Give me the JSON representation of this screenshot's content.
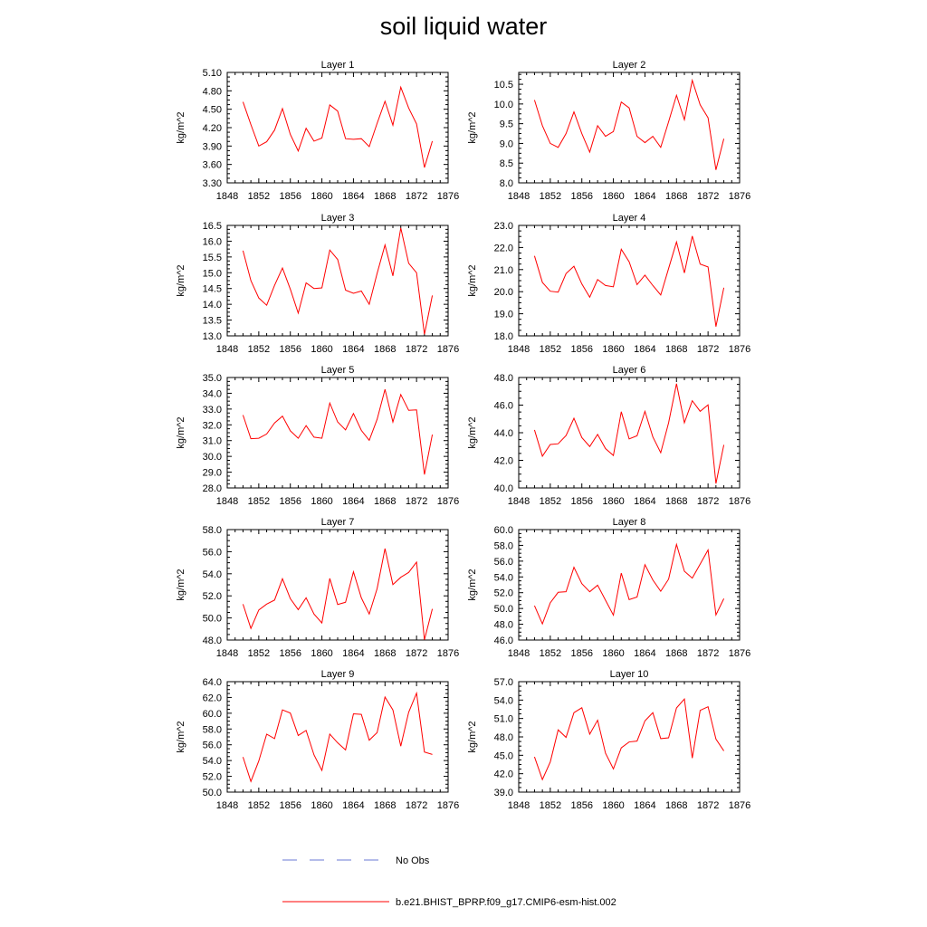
{
  "title": "soil liquid water",
  "legend": {
    "items": [
      {
        "label": "No Obs",
        "color": "#6a78d6",
        "dash": true
      },
      {
        "label": "b.e21.BHIST_BPRP.f09_g17.CMIP6-esm-hist.002",
        "color": "#ff0000",
        "dash": false
      }
    ]
  },
  "colors": {
    "series": "#ff0000",
    "obs": "#6a78d6"
  },
  "chart_data": [
    {
      "type": "line",
      "title": "Layer 1",
      "ylabel": "kg/m^2",
      "xlim": [
        1848,
        1876
      ],
      "xticks": [
        1848,
        1852,
        1856,
        1860,
        1864,
        1868,
        1872,
        1876
      ],
      "ylim": [
        3.3,
        5.1
      ],
      "yticks": [
        3.3,
        3.6,
        3.9,
        4.2,
        4.5,
        4.8,
        5.1
      ],
      "ydec": 2,
      "x": [
        1850,
        1851,
        1852,
        1853,
        1854,
        1855,
        1856,
        1857,
        1858,
        1859,
        1860,
        1861,
        1862,
        1863,
        1864,
        1865,
        1866,
        1867,
        1868,
        1869,
        1870,
        1871,
        1872,
        1873,
        1874
      ],
      "series": [
        {
          "name": "b.e21.BHIST_BPRP.f09_g17.CMIP6-esm-hist.002",
          "values": [
            4.62,
            4.25,
            3.9,
            3.97,
            4.16,
            4.51,
            4.09,
            3.82,
            4.19,
            3.98,
            4.03,
            4.57,
            4.47,
            4.02,
            4.01,
            4.02,
            3.89,
            4.27,
            4.63,
            4.24,
            4.86,
            4.52,
            4.26,
            3.55,
            3.98
          ]
        }
      ]
    },
    {
      "type": "line",
      "title": "Layer 2",
      "ylabel": "kg/m^2",
      "xlim": [
        1848,
        1876
      ],
      "xticks": [
        1848,
        1852,
        1856,
        1860,
        1864,
        1868,
        1872,
        1876
      ],
      "ylim": [
        8.0,
        10.8
      ],
      "yticks": [
        8.0,
        8.5,
        9.0,
        9.5,
        10.0,
        10.5
      ],
      "ydec": 1,
      "x": [
        1850,
        1851,
        1852,
        1853,
        1854,
        1855,
        1856,
        1857,
        1858,
        1859,
        1860,
        1861,
        1862,
        1863,
        1864,
        1865,
        1866,
        1867,
        1868,
        1869,
        1870,
        1871,
        1872,
        1873,
        1874
      ],
      "series": [
        {
          "name": "b.e21.BHIST_BPRP.f09_g17.CMIP6-esm-hist.002",
          "values": [
            10.1,
            9.45,
            9.0,
            8.9,
            9.25,
            9.8,
            9.25,
            8.78,
            9.45,
            9.18,
            9.3,
            10.05,
            9.9,
            9.18,
            9.02,
            9.18,
            8.9,
            9.55,
            10.22,
            9.6,
            10.6,
            9.98,
            9.65,
            8.33,
            9.12
          ]
        }
      ]
    },
    {
      "type": "line",
      "title": "Layer 3",
      "ylabel": "kg/m^2",
      "xlim": [
        1848,
        1876
      ],
      "xticks": [
        1848,
        1852,
        1856,
        1860,
        1864,
        1868,
        1872,
        1876
      ],
      "ylim": [
        13.0,
        16.5
      ],
      "yticks": [
        13.0,
        13.5,
        14.0,
        14.5,
        15.0,
        15.5,
        16.0,
        16.5
      ],
      "ydec": 1,
      "x": [
        1850,
        1851,
        1852,
        1853,
        1854,
        1855,
        1856,
        1857,
        1858,
        1859,
        1860,
        1861,
        1862,
        1863,
        1864,
        1865,
        1866,
        1867,
        1868,
        1869,
        1870,
        1871,
        1872,
        1873,
        1874
      ],
      "series": [
        {
          "name": "b.e21.BHIST_BPRP.f09_g17.CMIP6-esm-hist.002",
          "values": [
            15.7,
            14.75,
            14.2,
            13.97,
            14.6,
            15.15,
            14.48,
            13.72,
            14.68,
            14.5,
            14.52,
            15.72,
            15.42,
            14.45,
            14.35,
            14.42,
            14.0,
            14.98,
            15.88,
            14.9,
            16.42,
            15.3,
            15.0,
            13.05,
            14.28
          ]
        }
      ]
    },
    {
      "type": "line",
      "title": "Layer 4",
      "ylabel": "kg/m^2",
      "xlim": [
        1848,
        1876
      ],
      "xticks": [
        1848,
        1852,
        1856,
        1860,
        1864,
        1868,
        1872,
        1876
      ],
      "ylim": [
        18.0,
        23.0
      ],
      "yticks": [
        18.0,
        19.0,
        20.0,
        21.0,
        22.0,
        23.0
      ],
      "ydec": 1,
      "x": [
        1850,
        1851,
        1852,
        1853,
        1854,
        1855,
        1856,
        1857,
        1858,
        1859,
        1860,
        1861,
        1862,
        1863,
        1864,
        1865,
        1866,
        1867,
        1868,
        1869,
        1870,
        1871,
        1872,
        1873,
        1874
      ],
      "series": [
        {
          "name": "b.e21.BHIST_BPRP.f09_g17.CMIP6-esm-hist.002",
          "values": [
            21.62,
            20.42,
            20.02,
            19.98,
            20.82,
            21.15,
            20.35,
            19.75,
            20.55,
            20.28,
            20.22,
            21.92,
            21.35,
            20.32,
            20.75,
            20.28,
            19.85,
            21.05,
            22.25,
            20.85,
            22.52,
            21.25,
            21.12,
            18.42,
            20.18
          ]
        }
      ]
    },
    {
      "type": "line",
      "title": "Layer 5",
      "ylabel": "kg/m^2",
      "xlim": [
        1848,
        1876
      ],
      "xticks": [
        1848,
        1852,
        1856,
        1860,
        1864,
        1868,
        1872,
        1876
      ],
      "ylim": [
        28.0,
        35.0
      ],
      "yticks": [
        28.0,
        29.0,
        30.0,
        31.0,
        32.0,
        33.0,
        34.0,
        35.0
      ],
      "ydec": 1,
      "x": [
        1850,
        1851,
        1852,
        1853,
        1854,
        1855,
        1856,
        1857,
        1858,
        1859,
        1860,
        1861,
        1862,
        1863,
        1864,
        1865,
        1866,
        1867,
        1868,
        1869,
        1870,
        1871,
        1872,
        1873,
        1874
      ],
      "series": [
        {
          "name": "b.e21.BHIST_BPRP.f09_g17.CMIP6-esm-hist.002",
          "values": [
            32.62,
            31.12,
            31.15,
            31.42,
            32.12,
            32.55,
            31.62,
            31.15,
            31.95,
            31.22,
            31.15,
            33.38,
            32.18,
            31.68,
            32.72,
            31.65,
            31.02,
            32.35,
            34.25,
            32.18,
            33.92,
            32.92,
            32.95,
            28.85,
            31.38
          ]
        }
      ]
    },
    {
      "type": "line",
      "title": "Layer 6",
      "ylabel": "kg/m^2",
      "xlim": [
        1848,
        1876
      ],
      "xticks": [
        1848,
        1852,
        1856,
        1860,
        1864,
        1868,
        1872,
        1876
      ],
      "ylim": [
        40.0,
        48.0
      ],
      "yticks": [
        40.0,
        42.0,
        44.0,
        46.0,
        48.0
      ],
      "ydec": 1,
      "x": [
        1850,
        1851,
        1852,
        1853,
        1854,
        1855,
        1856,
        1857,
        1858,
        1859,
        1860,
        1861,
        1862,
        1863,
        1864,
        1865,
        1866,
        1867,
        1868,
        1869,
        1870,
        1871,
        1872,
        1873,
        1874
      ],
      "series": [
        {
          "name": "b.e21.BHIST_BPRP.f09_g17.CMIP6-esm-hist.002",
          "values": [
            44.2,
            42.3,
            43.15,
            43.2,
            43.8,
            45.05,
            43.65,
            43.0,
            43.88,
            42.85,
            42.35,
            45.52,
            43.55,
            43.78,
            45.55,
            43.7,
            42.55,
            44.72,
            47.55,
            44.72,
            46.32,
            45.55,
            46.02,
            40.32,
            43.12
          ]
        }
      ]
    },
    {
      "type": "line",
      "title": "Layer 7",
      "ylabel": "kg/m^2",
      "xlim": [
        1848,
        1876
      ],
      "xticks": [
        1848,
        1852,
        1856,
        1860,
        1864,
        1868,
        1872,
        1876
      ],
      "ylim": [
        48.0,
        58.0
      ],
      "yticks": [
        48.0,
        50.0,
        52.0,
        54.0,
        56.0,
        58.0
      ],
      "ydec": 1,
      "x": [
        1850,
        1851,
        1852,
        1853,
        1854,
        1855,
        1856,
        1857,
        1858,
        1859,
        1860,
        1861,
        1862,
        1863,
        1864,
        1865,
        1866,
        1867,
        1868,
        1869,
        1870,
        1871,
        1872,
        1873,
        1874
      ],
      "series": [
        {
          "name": "b.e21.BHIST_BPRP.f09_g17.CMIP6-esm-hist.002",
          "values": [
            51.25,
            49.05,
            50.72,
            51.25,
            51.62,
            53.55,
            51.75,
            50.75,
            51.82,
            50.35,
            49.55,
            53.58,
            51.22,
            51.42,
            54.18,
            51.82,
            50.35,
            52.65,
            56.28,
            53.02,
            53.68,
            54.12,
            55.05,
            48.02,
            50.82
          ]
        }
      ]
    },
    {
      "type": "line",
      "title": "Layer 8",
      "ylabel": "kg/m^2",
      "xlim": [
        1848,
        1876
      ],
      "xticks": [
        1848,
        1852,
        1856,
        1860,
        1864,
        1868,
        1872,
        1876
      ],
      "ylim": [
        46.0,
        60.0
      ],
      "yticks": [
        46.0,
        48.0,
        50.0,
        52.0,
        54.0,
        56.0,
        58.0,
        60.0
      ],
      "ydec": 1,
      "x": [
        1850,
        1851,
        1852,
        1853,
        1854,
        1855,
        1856,
        1857,
        1858,
        1859,
        1860,
        1861,
        1862,
        1863,
        1864,
        1865,
        1866,
        1867,
        1868,
        1869,
        1870,
        1871,
        1872,
        1873,
        1874
      ],
      "series": [
        {
          "name": "b.e21.BHIST_BPRP.f09_g17.CMIP6-esm-hist.002",
          "values": [
            50.35,
            48.05,
            50.72,
            52.05,
            52.12,
            55.22,
            53.15,
            52.12,
            52.95,
            51.05,
            49.15,
            54.48,
            51.12,
            51.45,
            55.55,
            53.62,
            52.18,
            53.72,
            58.12,
            54.72,
            53.85,
            55.62,
            57.42,
            49.18,
            51.25
          ]
        }
      ]
    },
    {
      "type": "line",
      "title": "Layer 9",
      "ylabel": "kg/m^2",
      "xlim": [
        1848,
        1876
      ],
      "xticks": [
        1848,
        1852,
        1856,
        1860,
        1864,
        1868,
        1872,
        1876
      ],
      "ylim": [
        50.0,
        64.0
      ],
      "yticks": [
        50.0,
        52.0,
        54.0,
        56.0,
        58.0,
        60.0,
        62.0,
        64.0
      ],
      "ydec": 1,
      "x": [
        1850,
        1851,
        1852,
        1853,
        1854,
        1855,
        1856,
        1857,
        1858,
        1859,
        1860,
        1861,
        1862,
        1863,
        1864,
        1865,
        1866,
        1867,
        1868,
        1869,
        1870,
        1871,
        1872,
        1873,
        1874
      ],
      "series": [
        {
          "name": "b.e21.BHIST_BPRP.f09_g17.CMIP6-esm-hist.002",
          "values": [
            54.45,
            51.35,
            53.95,
            57.35,
            56.78,
            60.42,
            60.02,
            57.18,
            57.82,
            54.72,
            52.75,
            57.35,
            56.25,
            55.35,
            59.92,
            59.85,
            56.58,
            57.55,
            62.05,
            60.42,
            55.82,
            60.12,
            62.55,
            55.08,
            54.78
          ]
        }
      ]
    },
    {
      "type": "line",
      "title": "Layer 10",
      "ylabel": "kg/m^2",
      "xlim": [
        1848,
        1876
      ],
      "xticks": [
        1848,
        1852,
        1856,
        1860,
        1864,
        1868,
        1872,
        1876
      ],
      "ylim": [
        39.0,
        57.0
      ],
      "yticks": [
        39.0,
        42.0,
        45.0,
        48.0,
        51.0,
        54.0,
        57.0
      ],
      "ydec": 1,
      "x": [
        1850,
        1851,
        1852,
        1853,
        1854,
        1855,
        1856,
        1857,
        1858,
        1859,
        1860,
        1861,
        1862,
        1863,
        1864,
        1865,
        1866,
        1867,
        1868,
        1869,
        1870,
        1871,
        1872,
        1873,
        1874
      ],
      "series": [
        {
          "name": "b.e21.BHIST_BPRP.f09_g17.CMIP6-esm-hist.002",
          "values": [
            44.75,
            41.05,
            43.92,
            49.15,
            47.92,
            51.95,
            52.75,
            48.45,
            50.72,
            45.35,
            42.78,
            46.22,
            47.18,
            47.32,
            50.62,
            51.95,
            47.72,
            47.85,
            52.72,
            54.18,
            44.55,
            52.32,
            52.92,
            47.65,
            45.72
          ]
        }
      ]
    }
  ]
}
